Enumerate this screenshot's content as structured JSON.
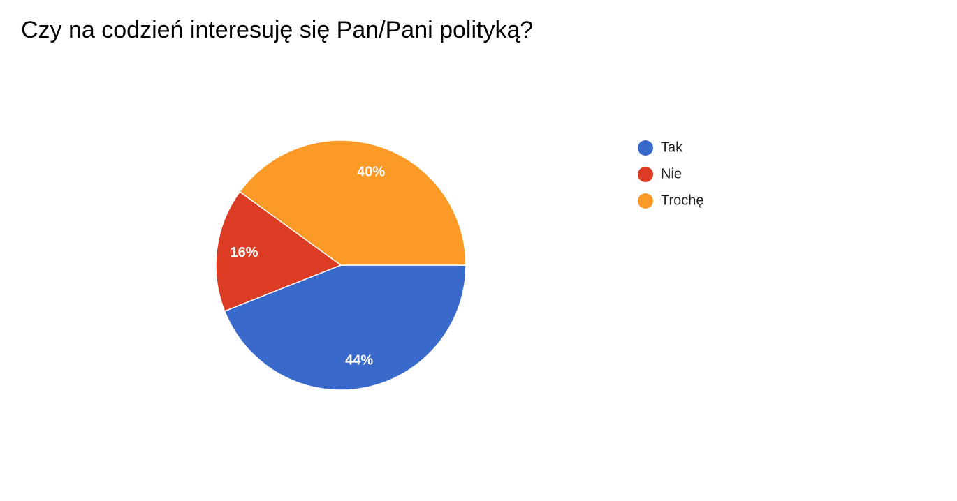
{
  "chart_data": {
    "type": "pie",
    "title": "Czy na codzień interesuję się Pan/Pani polityką?",
    "categories": [
      "Tak",
      "Nie",
      "Trochę"
    ],
    "values": [
      44,
      16,
      40
    ],
    "value_labels": [
      "44%",
      "16%",
      "40%"
    ],
    "colors": [
      "#3869cb",
      "#dc3b24",
      "#fb9a27"
    ],
    "legend": "right"
  }
}
